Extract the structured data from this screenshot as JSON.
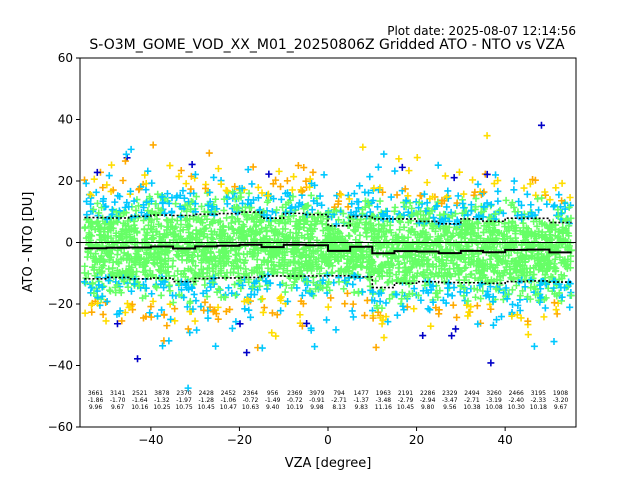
{
  "plot_date": "Plot date: 2025-08-07 12:14:56",
  "chart_data": {
    "type": "scatter",
    "title": "S-O3M_GOME_VOD_XX_M01_20250806Z Gridded ATO - NTO vs VZA",
    "xlabel": "VZA [degree]",
    "ylabel": "ATO - NTO [DU]",
    "xlim": [
      -56,
      56
    ],
    "ylim": [
      -60,
      60
    ],
    "xticks": [
      -40,
      -20,
      0,
      20,
      40
    ],
    "yticks": [
      -60,
      -40,
      -20,
      0,
      20,
      40,
      60
    ],
    "grid": false,
    "marker": "+",
    "point_colors": [
      "#0000c8",
      "#00c8ff",
      "#66ff66",
      "#ffdd00",
      "#ffaa00"
    ],
    "bin_centers": [
      -52.5,
      -47.5,
      -42.5,
      -37.5,
      -32.5,
      -27.5,
      -22.5,
      -17.5,
      -12.5,
      -7.5,
      -2.5,
      2.5,
      7.5,
      12.5,
      17.5,
      22.5,
      27.5,
      32.5,
      37.5,
      42.5,
      47.5,
      52.5
    ],
    "bin_counts": [
      "3661",
      "3141",
      "2521",
      "3878",
      "2370",
      "2428",
      "2452",
      "2364",
      "956",
      "2369",
      "3979",
      "794",
      "1477",
      "1963",
      "2191",
      "2286",
      "2329",
      "2494",
      "3260",
      "2466",
      "3195",
      "1908"
    ],
    "bin_means": [
      -1.86,
      -1.7,
      -1.64,
      -1.32,
      -1.97,
      -1.28,
      -1.06,
      -0.72,
      -1.49,
      -0.72,
      -0.91,
      -2.71,
      -1.37,
      -3.48,
      -2.79,
      -2.94,
      -3.47,
      -2.71,
      -3.19,
      -2.4,
      -2.33,
      -3.2
    ],
    "bin_stds": [
      9.96,
      9.67,
      10.16,
      10.25,
      10.75,
      10.45,
      10.47,
      10.63,
      9.4,
      10.19,
      9.98,
      8.13,
      9.83,
      11.16,
      10.45,
      9.8,
      9.56,
      10.38,
      10.08,
      10.3,
      10.18,
      9.67
    ],
    "bin_means_label": [
      "-1.86",
      "-1.70",
      "-1.64",
      "-1.32",
      "-1.97",
      "-1.28",
      "-1.06",
      "-0.72",
      "-1.49",
      "-0.72",
      "-0.91",
      "-2.71",
      "-1.37",
      "-3.48",
      "-2.79",
      "-2.94",
      "-3.47",
      "-2.71",
      "-3.19",
      "-2.40",
      "-2.33",
      "-3.20"
    ],
    "bin_stds_label": [
      "9.96",
      "9.67",
      "10.16",
      "10.25",
      "10.75",
      "10.45",
      "10.47",
      "10.63",
      "9.40",
      "10.19",
      "9.98",
      "8.13",
      "9.83",
      "11.16",
      "10.45",
      "9.80",
      "9.56",
      "10.38",
      "10.08",
      "10.30",
      "10.18",
      "9.67"
    ],
    "zero_line": 0
  }
}
